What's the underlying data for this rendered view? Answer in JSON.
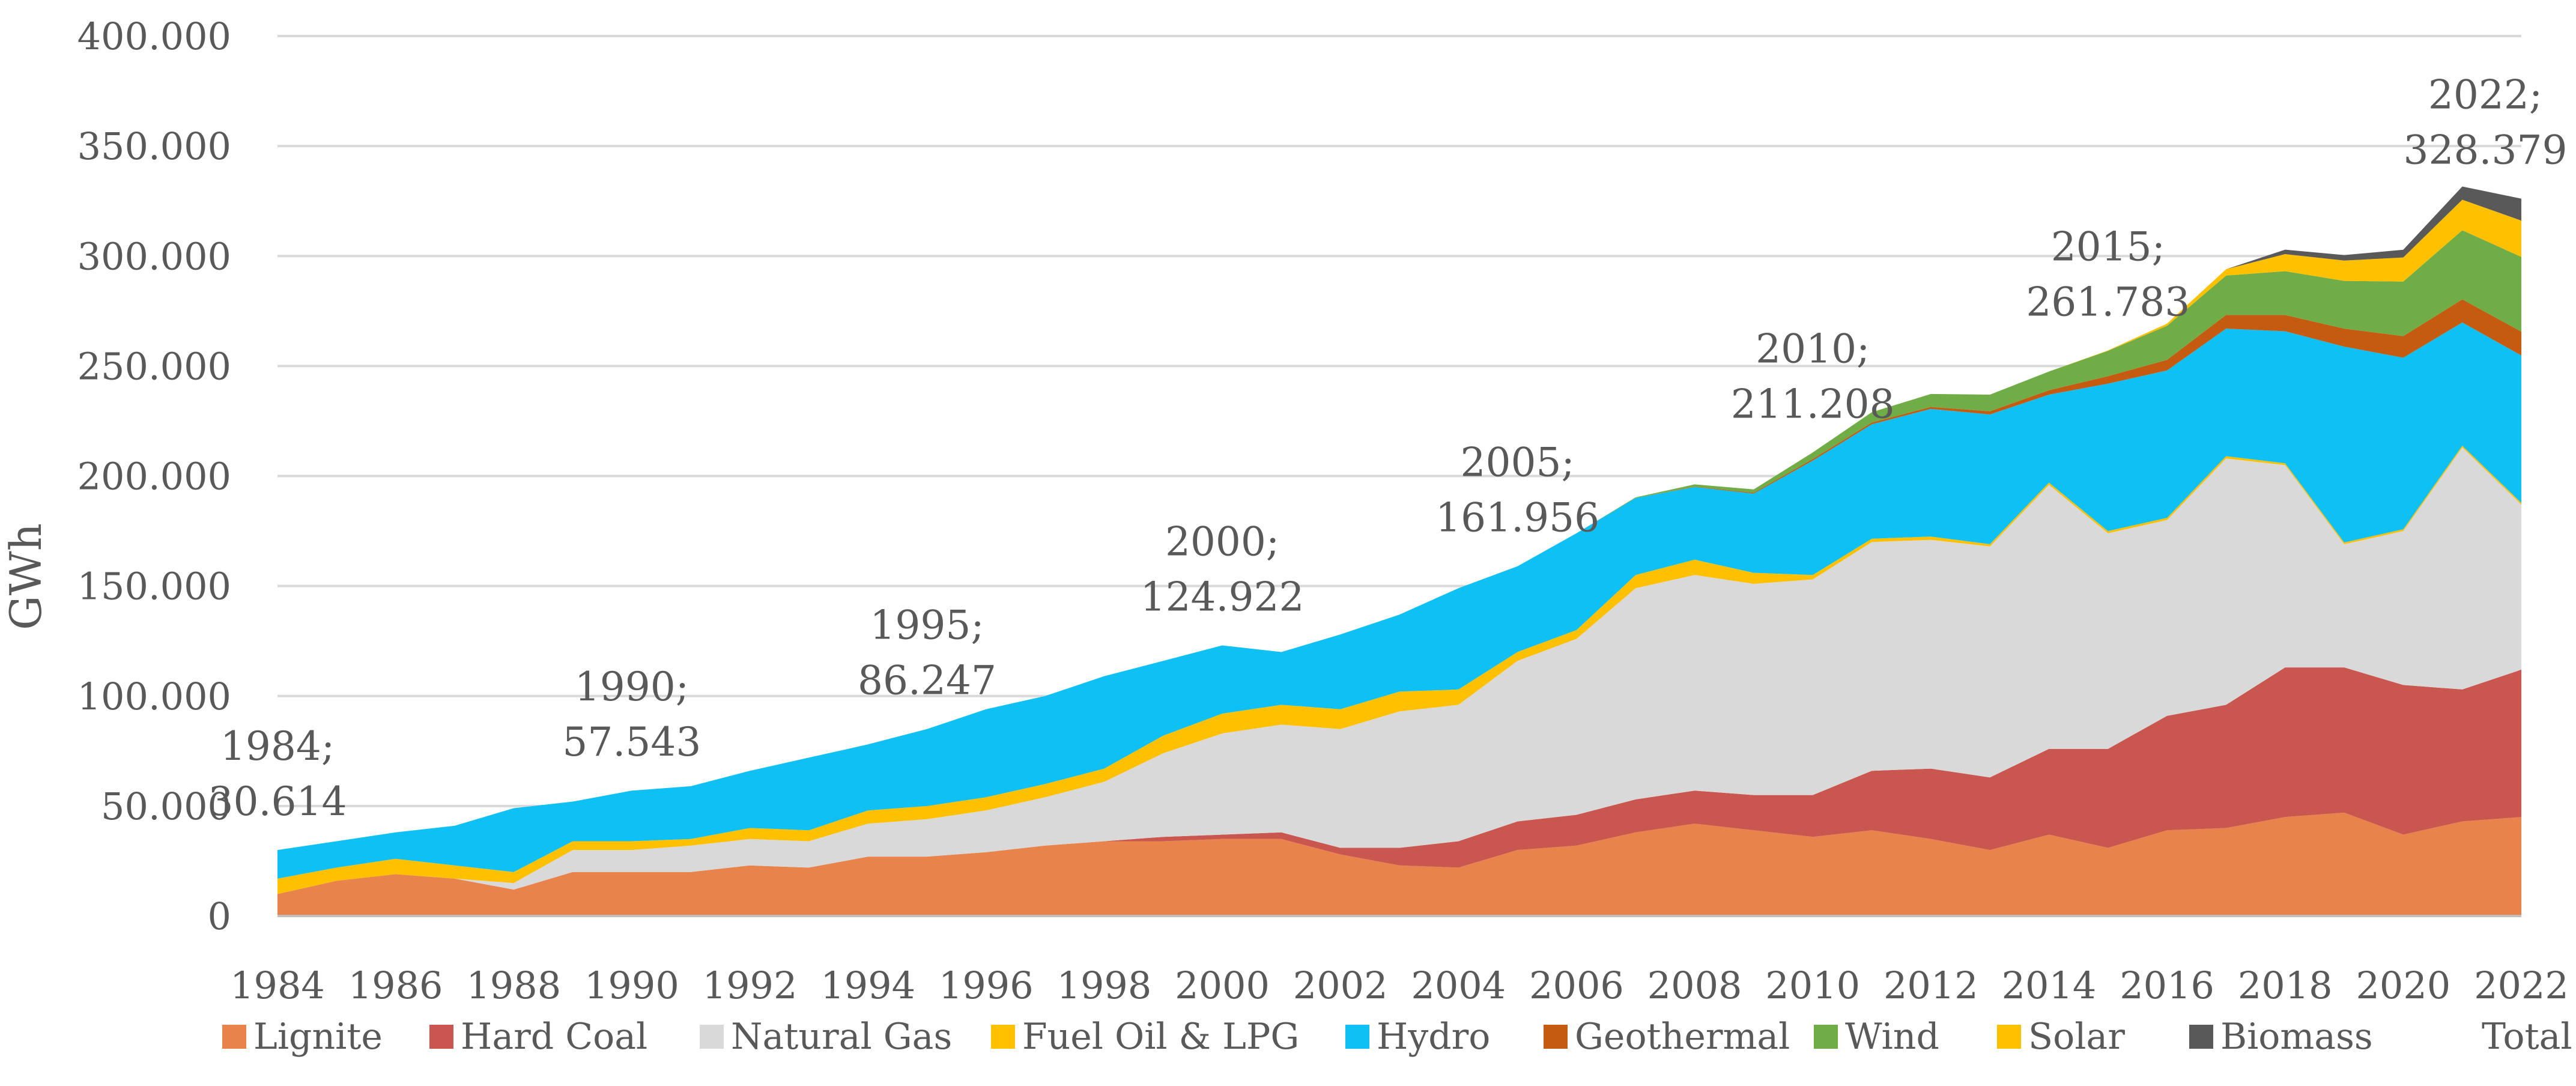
{
  "chart_data": {
    "type": "area",
    "stacked": true,
    "title": "",
    "xlabel": "",
    "ylabel": "GWh",
    "ylim": [
      0,
      400000
    ],
    "ytick_values": [
      0,
      50000,
      100000,
      150000,
      200000,
      250000,
      300000,
      350000,
      400000
    ],
    "ytick_labels": [
      "0",
      "50.000",
      "100.000",
      "150.000",
      "200.000",
      "250.000",
      "300.000",
      "350.000",
      "400.000"
    ],
    "x": [
      1984,
      1985,
      1986,
      1987,
      1988,
      1989,
      1990,
      1991,
      1992,
      1993,
      1994,
      1995,
      1996,
      1997,
      1998,
      1999,
      2000,
      2001,
      2002,
      2003,
      2004,
      2005,
      2006,
      2007,
      2008,
      2009,
      2010,
      2011,
      2012,
      2013,
      2014,
      2015,
      2016,
      2017,
      2018,
      2019,
      2020,
      2021,
      2022
    ],
    "xtick_labels": [
      "1984",
      "1986",
      "1988",
      "1990",
      "1992",
      "1994",
      "1996",
      "1998",
      "2000",
      "2002",
      "2004",
      "2006",
      "2008",
      "2010",
      "2012",
      "2014",
      "2016",
      "2018",
      "2020",
      "2022"
    ],
    "gridlines": true,
    "legend_position": "bottom",
    "series": [
      {
        "name": "Lignite",
        "color": "#E8834C",
        "values": [
          10000,
          16000,
          19000,
          17000,
          12000,
          20000,
          20000,
          20000,
          23000,
          22000,
          27000,
          27000,
          29000,
          32000,
          34000,
          34000,
          35000,
          35000,
          28000,
          23000,
          22000,
          30000,
          32000,
          38000,
          42000,
          39000,
          36000,
          39000,
          35000,
          30000,
          37000,
          31000,
          39000,
          40000,
          45000,
          47000,
          37000,
          43000,
          45000
        ]
      },
      {
        "name": "Hard Coal",
        "color": "#C9574F",
        "values": [
          0,
          0,
          0,
          0,
          0,
          0,
          0,
          0,
          0,
          0,
          0,
          0,
          0,
          0,
          0,
          2000,
          2000,
          3000,
          3000,
          8000,
          12000,
          13000,
          14000,
          15000,
          15000,
          16000,
          19000,
          27000,
          32000,
          33000,
          39000,
          45000,
          52000,
          56000,
          68000,
          66000,
          68000,
          60000,
          67000
        ]
      },
      {
        "name": "Natural Gas",
        "color": "#D9D9D9",
        "values": [
          0,
          0,
          0,
          0,
          3000,
          10000,
          10000,
          12000,
          12000,
          12000,
          15000,
          17000,
          19000,
          22000,
          27000,
          38000,
          46000,
          49000,
          54000,
          62000,
          62000,
          73000,
          80000,
          96000,
          98000,
          96000,
          98000,
          104000,
          104000,
          105000,
          120000,
          98000,
          89000,
          112000,
          92000,
          56000,
          70000,
          110000,
          75000
        ]
      },
      {
        "name": "Fuel Oil & LPG",
        "color": "#FFC000",
        "values": [
          7000,
          6000,
          7000,
          6000,
          5000,
          4000,
          4000,
          3000,
          5000,
          5000,
          6000,
          6000,
          6000,
          6000,
          6000,
          8000,
          9000,
          9000,
          9000,
          9000,
          7000,
          4000,
          4000,
          6000,
          7000,
          5000,
          2000,
          1500,
          1500,
          1000,
          1000,
          1000,
          1000,
          1000,
          800,
          800,
          800,
          800,
          800
        ]
      },
      {
        "name": "Hydro",
        "color": "#0FC0F5",
        "values": [
          13000,
          12000,
          12000,
          18000,
          29000,
          18000,
          23000,
          24000,
          26000,
          33000,
          30000,
          35000,
          40000,
          40000,
          42000,
          34000,
          31000,
          24000,
          34000,
          35000,
          46000,
          39000,
          44000,
          35000,
          33000,
          36000,
          52000,
          52000,
          58000,
          59000,
          40000,
          67000,
          67000,
          58000,
          60000,
          89000,
          78000,
          56000,
          67000
        ]
      },
      {
        "name": "Geothermal",
        "color": "#C55A11",
        "values": [
          0,
          0,
          0,
          0,
          0,
          0,
          0,
          0,
          0,
          0,
          0,
          0,
          0,
          0,
          0,
          0,
          0,
          0,
          0,
          0,
          0,
          0,
          0,
          0,
          200,
          400,
          700,
          800,
          900,
          1400,
          2000,
          3400,
          4800,
          6200,
          7400,
          8200,
          9800,
          10500,
          10800
        ]
      },
      {
        "name": "Wind",
        "color": "#70AD47",
        "values": [
          0,
          0,
          0,
          0,
          0,
          0,
          0,
          0,
          0,
          0,
          0,
          0,
          0,
          0,
          0,
          0,
          0,
          0,
          0,
          0,
          0,
          0,
          0,
          300,
          1000,
          1500,
          3000,
          4700,
          5900,
          7600,
          8500,
          11500,
          15500,
          17900,
          19900,
          21700,
          24800,
          31400,
          34000
        ]
      },
      {
        "name": "Solar",
        "color": "#FFC000",
        "values": [
          0,
          0,
          0,
          0,
          0,
          0,
          0,
          0,
          0,
          0,
          0,
          0,
          0,
          0,
          0,
          0,
          0,
          0,
          0,
          0,
          0,
          0,
          0,
          0,
          0,
          0,
          0,
          0,
          0,
          0,
          0,
          200,
          1000,
          2900,
          7800,
          9250,
          10950,
          13900,
          16500
        ]
      },
      {
        "name": "Biomass",
        "color": "#595959",
        "values": [
          0,
          0,
          0,
          0,
          0,
          0,
          0,
          0,
          0,
          0,
          0,
          0,
          0,
          0,
          0,
          0,
          0,
          0,
          0,
          0,
          0,
          0,
          0,
          0,
          0,
          0,
          0,
          0,
          0,
          0,
          0,
          0,
          0,
          0,
          2000,
          2500,
          3500,
          6000,
          10000
        ]
      }
    ],
    "legend_extra": "Total",
    "annotations": [
      {
        "year": "1984",
        "value": "30.614"
      },
      {
        "year": "1990",
        "value": "57.543"
      },
      {
        "year": "1995",
        "value": "86.247"
      },
      {
        "year": "2000",
        "value": "124.922"
      },
      {
        "year": "2005",
        "value": "161.956"
      },
      {
        "year": "2010",
        "value": "211.208"
      },
      {
        "year": "2015",
        "value": "261.783"
      },
      {
        "year": "2022",
        "value": "328.379"
      }
    ]
  }
}
